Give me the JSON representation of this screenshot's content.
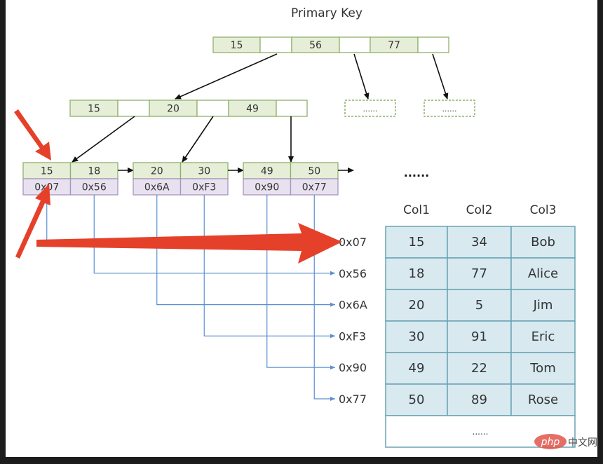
{
  "title": "Primary Key",
  "root_node": {
    "keys": [
      "15",
      "56",
      "77"
    ]
  },
  "inner_node": {
    "keys": [
      "15",
      "20",
      "49"
    ]
  },
  "placeholder_nodes": [
    "......",
    "......"
  ],
  "leaf_nodes": [
    {
      "keys": [
        "15",
        "18"
      ],
      "addresses": [
        "0x07",
        "0x56"
      ]
    },
    {
      "keys": [
        "20",
        "30"
      ],
      "addresses": [
        "0x6A",
        "0xF3"
      ]
    },
    {
      "keys": [
        "49",
        "50"
      ],
      "addresses": [
        "0x90",
        "0x77"
      ]
    }
  ],
  "leaf_ellipsis": "......",
  "pointer_labels": [
    "0x07",
    "0x56",
    "0x6A",
    "0xF3",
    "0x90",
    "0x77"
  ],
  "table": {
    "columns": [
      "Col1",
      "Col2",
      "Col3"
    ],
    "rows": [
      [
        "15",
        "34",
        "Bob"
      ],
      [
        "18",
        "77",
        "Alice"
      ],
      [
        "20",
        "5",
        "Jim"
      ],
      [
        "30",
        "91",
        "Eric"
      ],
      [
        "49",
        "22",
        "Tom"
      ],
      [
        "50",
        "89",
        "Rose"
      ]
    ],
    "ellipsis": "......"
  },
  "watermark": {
    "logo": "php",
    "text": "中文网"
  },
  "colors": {
    "key_fill": "#e6eed8",
    "key_stroke": "#8fb06a",
    "addr_fill": "#e8e2f0",
    "addr_stroke": "#a894c0",
    "link_blue": "#5b8fd0",
    "table_fill": "#d8eaf0",
    "table_stroke": "#6aa2b4",
    "highlight_red": "#e5412a"
  }
}
